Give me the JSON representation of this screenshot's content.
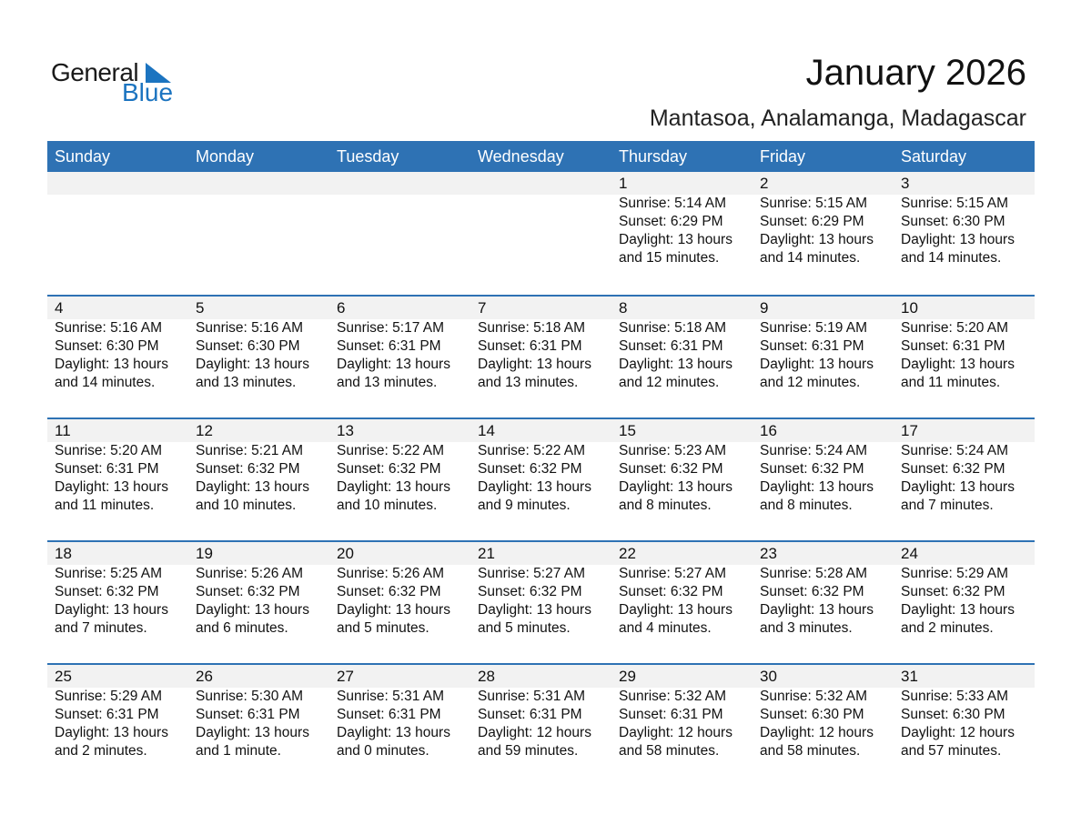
{
  "logo": {
    "text1": "General",
    "text2": "Blue"
  },
  "title": "January 2026",
  "subtitle": "Mantasoa, Analamanga, Madagascar",
  "colors": {
    "header": "#2e72b4",
    "band": "#f2f2f2"
  },
  "weekdays": [
    "Sunday",
    "Monday",
    "Tuesday",
    "Wednesday",
    "Thursday",
    "Friday",
    "Saturday"
  ],
  "days": [
    [
      "1",
      "5:14 AM",
      "6:29 PM",
      "13 hours",
      "and 15 minutes."
    ],
    [
      "2",
      "5:15 AM",
      "6:29 PM",
      "13 hours",
      "and 14 minutes."
    ],
    [
      "3",
      "5:15 AM",
      "6:30 PM",
      "13 hours",
      "and 14 minutes."
    ],
    [
      "4",
      "5:16 AM",
      "6:30 PM",
      "13 hours",
      "and 14 minutes."
    ],
    [
      "5",
      "5:16 AM",
      "6:30 PM",
      "13 hours",
      "and 13 minutes."
    ],
    [
      "6",
      "5:17 AM",
      "6:31 PM",
      "13 hours",
      "and 13 minutes."
    ],
    [
      "7",
      "5:18 AM",
      "6:31 PM",
      "13 hours",
      "and 13 minutes."
    ],
    [
      "8",
      "5:18 AM",
      "6:31 PM",
      "13 hours",
      "and 12 minutes."
    ],
    [
      "9",
      "5:19 AM",
      "6:31 PM",
      "13 hours",
      "and 12 minutes."
    ],
    [
      "10",
      "5:20 AM",
      "6:31 PM",
      "13 hours",
      "and 11 minutes."
    ],
    [
      "11",
      "5:20 AM",
      "6:31 PM",
      "13 hours",
      "and 11 minutes."
    ],
    [
      "12",
      "5:21 AM",
      "6:32 PM",
      "13 hours",
      "and 10 minutes."
    ],
    [
      "13",
      "5:22 AM",
      "6:32 PM",
      "13 hours",
      "and 10 minutes."
    ],
    [
      "14",
      "5:22 AM",
      "6:32 PM",
      "13 hours",
      "and 9 minutes."
    ],
    [
      "15",
      "5:23 AM",
      "6:32 PM",
      "13 hours",
      "and 8 minutes."
    ],
    [
      "16",
      "5:24 AM",
      "6:32 PM",
      "13 hours",
      "and 8 minutes."
    ],
    [
      "17",
      "5:24 AM",
      "6:32 PM",
      "13 hours",
      "and 7 minutes."
    ],
    [
      "18",
      "5:25 AM",
      "6:32 PM",
      "13 hours",
      "and 7 minutes."
    ],
    [
      "19",
      "5:26 AM",
      "6:32 PM",
      "13 hours",
      "and 6 minutes."
    ],
    [
      "20",
      "5:26 AM",
      "6:32 PM",
      "13 hours",
      "and 5 minutes."
    ],
    [
      "21",
      "5:27 AM",
      "6:32 PM",
      "13 hours",
      "and 5 minutes."
    ],
    [
      "22",
      "5:27 AM",
      "6:32 PM",
      "13 hours",
      "and 4 minutes."
    ],
    [
      "23",
      "5:28 AM",
      "6:32 PM",
      "13 hours",
      "and 3 minutes."
    ],
    [
      "24",
      "5:29 AM",
      "6:32 PM",
      "13 hours",
      "and 2 minutes."
    ],
    [
      "25",
      "5:29 AM",
      "6:31 PM",
      "13 hours",
      "and 2 minutes."
    ],
    [
      "26",
      "5:30 AM",
      "6:31 PM",
      "13 hours",
      "and 1 minute."
    ],
    [
      "27",
      "5:31 AM",
      "6:31 PM",
      "13 hours",
      "and 0 minutes."
    ],
    [
      "28",
      "5:31 AM",
      "6:31 PM",
      "12 hours",
      "and 59 minutes."
    ],
    [
      "29",
      "5:32 AM",
      "6:31 PM",
      "12 hours",
      "and 58 minutes."
    ],
    [
      "30",
      "5:32 AM",
      "6:30 PM",
      "12 hours",
      "and 58 minutes."
    ],
    [
      "31",
      "5:33 AM",
      "6:30 PM",
      "12 hours",
      "and 57 minutes."
    ]
  ],
  "labels": {
    "sunrise": "Sunrise: ",
    "sunset": "Sunset: ",
    "daylight": "Daylight: "
  },
  "first_weekday_offset": 4
}
